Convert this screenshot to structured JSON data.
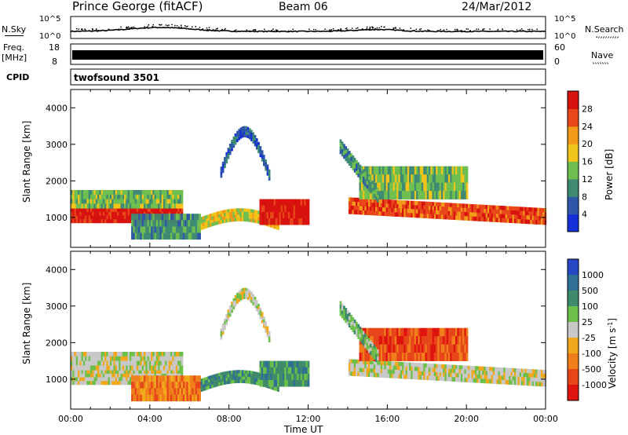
{
  "header": {
    "station": "Prince George (fitACF)",
    "beam": "Beam 06",
    "date": "24/Mar/2012"
  },
  "nsky_panel": {
    "left_label": "N.Sky",
    "right_label": "N.Search",
    "left_ticks": [
      "10^5",
      "10^0"
    ],
    "right_ticks": [
      "10^5",
      "10^0"
    ]
  },
  "freq_panel": {
    "left_label_1": "Freq.",
    "left_label_2": "[MHz]",
    "left_ticks": [
      "18",
      "8"
    ],
    "right_label": "Nave",
    "right_ticks": [
      "60",
      "0"
    ]
  },
  "cpid_panel": {
    "label": "CPID",
    "mode": "twofsound 3501"
  },
  "time_axis": {
    "label": "Time UT",
    "ticks": [
      "00:00",
      "04:00",
      "08:00",
      "12:00",
      "16:00",
      "20:00",
      "00:00"
    ]
  },
  "chart_data": [
    {
      "type": "heatmap",
      "title": "",
      "xlabel": "Time UT",
      "ylabel": "Slant Range [km]",
      "xlim": [
        0,
        24
      ],
      "ylim": [
        180,
        4500
      ],
      "x_ticks": [
        "00:00",
        "04:00",
        "08:00",
        "12:00",
        "16:00",
        "20:00",
        "00:00"
      ],
      "y_ticks": [
        1000,
        2000,
        3000,
        4000
      ],
      "colorbar": {
        "label": "Power [dB]",
        "ticks": [
          "4",
          "8",
          "12",
          "16",
          "20",
          "24",
          "28"
        ],
        "colors": [
          "#1530d8",
          "#2e57a8",
          "#3f8a72",
          "#6fbf50",
          "#f0c419",
          "#f39a1b",
          "#e8471a",
          "#d8120e"
        ]
      }
    },
    {
      "type": "heatmap",
      "title": "",
      "xlabel": "Time UT",
      "ylabel": "Slant Range [km]",
      "xlim": [
        0,
        24
      ],
      "ylim": [
        180,
        4500
      ],
      "x_ticks": [
        "00:00",
        "04:00",
        "08:00",
        "12:00",
        "16:00",
        "20:00",
        "00:00"
      ],
      "y_ticks": [
        1000,
        2000,
        3000,
        4000
      ],
      "colorbar": {
        "label": "Velocity [m s^-1]",
        "ticks": [
          "1000",
          "500",
          "100",
          "25",
          "-25",
          "-100",
          "-500",
          "-1000"
        ],
        "colors": [
          "#2748c4",
          "#2f7096",
          "#3f8a6a",
          "#6cc04a",
          "#c8c8c8",
          "#f2a81c",
          "#f07e1a",
          "#e6461a",
          "#e0140f"
        ]
      }
    }
  ]
}
